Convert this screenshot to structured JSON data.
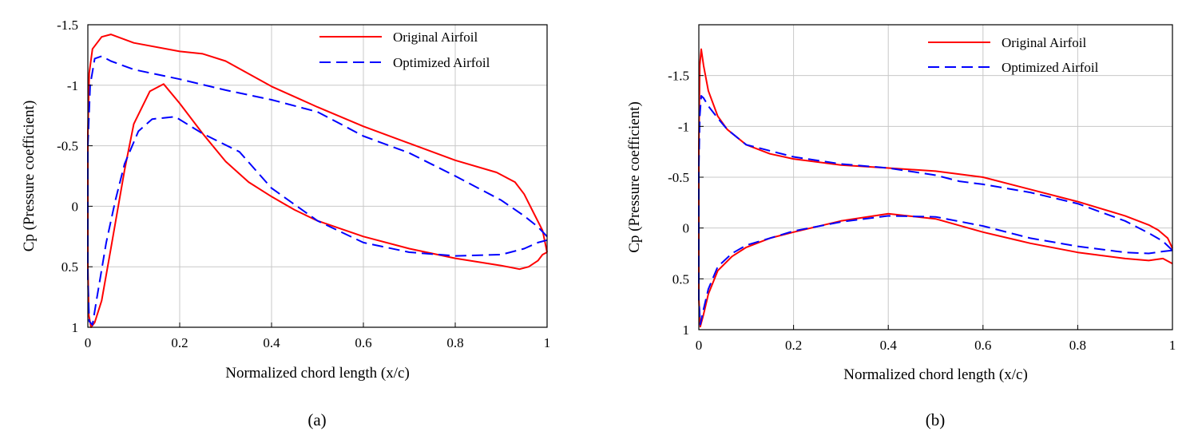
{
  "figure": {
    "panel_labels": [
      "(a)",
      "(b)"
    ]
  },
  "chart_data": [
    {
      "type": "line",
      "panel": "(a)",
      "title": "",
      "xlabel": "Normalized chord length (x/c)",
      "ylabel": "Cp (Pressure coefficient)",
      "xlim": [
        0,
        1
      ],
      "ylim": [
        1,
        -1.5
      ],
      "y_inverted": true,
      "grid": true,
      "legend_position": "top-right",
      "xticks": [
        0,
        0.2,
        0.4,
        0.6,
        0.8,
        1
      ],
      "xtick_labels": [
        "0",
        "0.2",
        "0.4",
        "0.6",
        "0.8",
        "1"
      ],
      "yticks": [
        -1.5,
        -1,
        -0.5,
        0,
        0.5,
        1
      ],
      "ytick_labels": [
        "-1.5",
        "-1",
        "-0.5",
        "0",
        "0.5",
        "1"
      ],
      "series": [
        {
          "name": "Original Airfoil",
          "color": "#ff0000",
          "style": "solid",
          "x": [
            1.0,
            0.99,
            0.97,
            0.95,
            0.93,
            0.89,
            0.8,
            0.7,
            0.6,
            0.5,
            0.4,
            0.3,
            0.25,
            0.2,
            0.1,
            0.05,
            0.03,
            0.01,
            0.003,
            0.0,
            0.0,
            0.002,
            0.007,
            0.015,
            0.03,
            0.05,
            0.08,
            0.1,
            0.135,
            0.165,
            0.2,
            0.25,
            0.3,
            0.35,
            0.4,
            0.45,
            0.5,
            0.6,
            0.7,
            0.8,
            0.9,
            0.94,
            0.96,
            0.98,
            0.99,
            1.0
          ],
          "y": [
            0.38,
            0.2,
            0.05,
            -0.1,
            -0.2,
            -0.28,
            -0.38,
            -0.52,
            -0.66,
            -0.82,
            -0.99,
            -1.2,
            -1.26,
            -1.28,
            -1.35,
            -1.42,
            -1.4,
            -1.3,
            -1.1,
            -0.6,
            0.5,
            0.9,
            1.0,
            0.96,
            0.78,
            0.35,
            -0.3,
            -0.68,
            -0.95,
            -1.01,
            -0.85,
            -0.6,
            -0.37,
            -0.2,
            -0.08,
            0.03,
            0.12,
            0.25,
            0.35,
            0.43,
            0.49,
            0.52,
            0.5,
            0.45,
            0.4,
            0.38
          ]
        },
        {
          "name": "Optimized Airfoil",
          "color": "#0000ff",
          "style": "dashed",
          "x": [
            1.0,
            0.98,
            0.95,
            0.9,
            0.85,
            0.8,
            0.7,
            0.6,
            0.55,
            0.5,
            0.4,
            0.3,
            0.2,
            0.1,
            0.05,
            0.03,
            0.015,
            0.005,
            0.0,
            0.0,
            0.003,
            0.01,
            0.02,
            0.04,
            0.06,
            0.08,
            0.11,
            0.14,
            0.19,
            0.25,
            0.33,
            0.4,
            0.5,
            0.6,
            0.7,
            0.8,
            0.9,
            0.95,
            0.98,
            1.0
          ],
          "y": [
            0.25,
            0.17,
            0.08,
            -0.05,
            -0.15,
            -0.25,
            -0.44,
            -0.58,
            -0.68,
            -0.78,
            -0.88,
            -0.96,
            -1.05,
            -1.13,
            -1.2,
            -1.24,
            -1.22,
            -1.0,
            -0.5,
            0.6,
            0.95,
            0.98,
            0.75,
            0.3,
            -0.05,
            -0.35,
            -0.62,
            -0.72,
            -0.74,
            -0.6,
            -0.45,
            -0.15,
            0.12,
            0.3,
            0.38,
            0.41,
            0.4,
            0.35,
            0.3,
            0.28
          ]
        }
      ]
    },
    {
      "type": "line",
      "panel": "(b)",
      "title": "",
      "xlabel": "Normalized chord length (x/c)",
      "ylabel": "Cp (Pressure coefficient)",
      "xlim": [
        0,
        1
      ],
      "ylim": [
        1,
        -2
      ],
      "y_inverted": true,
      "grid": true,
      "legend_position": "top-right",
      "xticks": [
        0,
        0.2,
        0.4,
        0.6,
        0.8,
        1
      ],
      "xtick_labels": [
        "0",
        "0.2",
        "0.4",
        "0.6",
        "0.8",
        "1"
      ],
      "yticks": [
        -1.5,
        -1,
        -0.5,
        0,
        0.5,
        1
      ],
      "ytick_labels": [
        "-1.5",
        "-1",
        "-0.5",
        "0",
        "0.5",
        "1"
      ],
      "series": [
        {
          "name": "Original Airfoil",
          "color": "#ff0000",
          "style": "solid",
          "x": [
            1.0,
            0.99,
            0.97,
            0.95,
            0.9,
            0.8,
            0.7,
            0.6,
            0.5,
            0.4,
            0.3,
            0.2,
            0.15,
            0.1,
            0.06,
            0.04,
            0.02,
            0.01,
            0.005,
            0.002,
            0.0,
            0.0,
            0.003,
            0.01,
            0.02,
            0.04,
            0.07,
            0.1,
            0.15,
            0.2,
            0.3,
            0.4,
            0.5,
            0.6,
            0.7,
            0.8,
            0.9,
            0.95,
            0.98,
            1.0
          ],
          "y": [
            0.2,
            0.1,
            0.02,
            -0.03,
            -0.12,
            -0.26,
            -0.38,
            -0.5,
            -0.56,
            -0.59,
            -0.62,
            -0.68,
            -0.73,
            -0.82,
            -0.97,
            -1.1,
            -1.35,
            -1.6,
            -1.76,
            -1.6,
            -0.8,
            0.7,
            0.97,
            0.85,
            0.65,
            0.42,
            0.28,
            0.19,
            0.1,
            0.04,
            -0.07,
            -0.14,
            -0.09,
            0.04,
            0.15,
            0.24,
            0.3,
            0.32,
            0.3,
            0.35
          ]
        },
        {
          "name": "Optimized Airfoil",
          "color": "#0000ff",
          "style": "dashed",
          "x": [
            1.0,
            0.98,
            0.95,
            0.9,
            0.8,
            0.7,
            0.6,
            0.55,
            0.5,
            0.4,
            0.3,
            0.2,
            0.1,
            0.06,
            0.04,
            0.02,
            0.01,
            0.005,
            0.002,
            0.0,
            0.0,
            0.003,
            0.01,
            0.02,
            0.04,
            0.07,
            0.1,
            0.2,
            0.3,
            0.4,
            0.5,
            0.6,
            0.7,
            0.8,
            0.9,
            0.95,
            0.98,
            1.0
          ],
          "y": [
            0.22,
            0.13,
            0.05,
            -0.07,
            -0.24,
            -0.35,
            -0.43,
            -0.46,
            -0.52,
            -0.59,
            -0.63,
            -0.7,
            -0.82,
            -0.97,
            -1.08,
            -1.2,
            -1.28,
            -1.3,
            -1.1,
            -0.6,
            0.7,
            0.95,
            0.8,
            0.6,
            0.38,
            0.25,
            0.17,
            0.03,
            -0.06,
            -0.12,
            -0.11,
            -0.02,
            0.1,
            0.18,
            0.24,
            0.25,
            0.23,
            0.22
          ]
        }
      ]
    }
  ]
}
